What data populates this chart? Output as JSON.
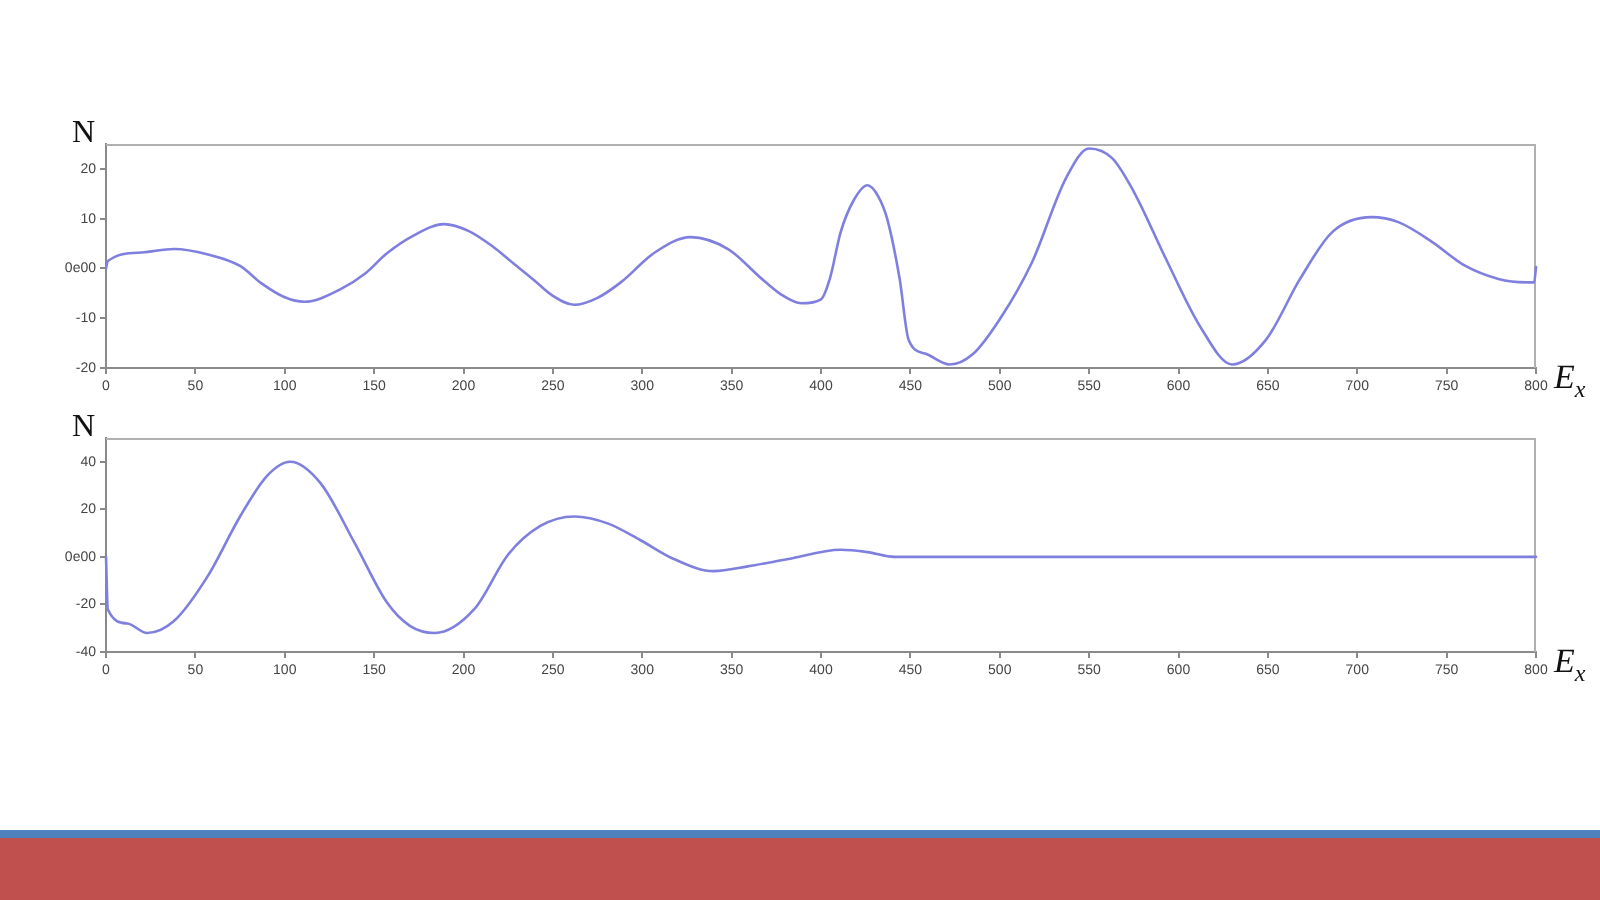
{
  "chart_data": [
    {
      "type": "line",
      "xlabel": "E$_{x}$",
      "ylabel": "N",
      "color": "#7f7fdf",
      "marker": "none",
      "x": [
        0,
        1,
        20,
        38,
        57,
        75,
        87,
        100,
        111,
        131,
        145,
        157,
        172,
        189,
        203,
        216,
        228,
        239,
        250,
        262,
        275,
        288,
        307,
        327,
        348,
        366,
        378,
        389,
        400,
        405,
        411,
        418,
        426,
        432,
        437,
        444,
        449,
        459,
        472,
        485,
        500,
        518,
        537,
        550,
        563,
        575,
        593,
        612,
        630,
        649,
        668,
        686,
        708,
        723,
        742,
        760,
        779,
        796,
        799,
        800
      ],
      "values": [
        0,
        1.5,
        3.2,
        3.9,
        2.8,
        0.5,
        -3.0,
        -5.8,
        -6.7,
        -4.2,
        -1.0,
        3.0,
        6.6,
        8.9,
        7.5,
        4.5,
        1.0,
        -2.2,
        -5.5,
        -7.3,
        -5.9,
        -2.8,
        3.2,
        6.3,
        3.9,
        -1.8,
        -5.3,
        -7.0,
        -6.2,
        -2.0,
        7.3,
        13.5,
        16.7,
        14.5,
        10.0,
        -2.1,
        -14.3,
        -17.2,
        -19.3,
        -17.2,
        -10.2,
        1.2,
        18.1,
        24.1,
        22.1,
        15.4,
        1.9,
        -11.6,
        -19.3,
        -14.3,
        -2.1,
        7.3,
        10.3,
        9.3,
        5.3,
        0.6,
        -2.1,
        -2.8,
        -2.8,
        0.3
      ],
      "xlim": [
        0,
        800
      ],
      "xticks": [
        0,
        50,
        100,
        150,
        200,
        250,
        300,
        350,
        400,
        450,
        500,
        550,
        600,
        650,
        700,
        750,
        800
      ],
      "ylim": [
        -20,
        25
      ],
      "yticks": [
        -20,
        -10,
        {
          "value": 0,
          "label": "0e00"
        },
        10,
        20
      ]
    },
    {
      "type": "line",
      "xlabel": "E$_{x}$",
      "ylabel": "N",
      "color": "#7f7fdf",
      "marker": "none",
      "x": [
        0,
        1,
        12,
        23,
        38,
        57,
        75,
        90,
        103,
        120,
        139,
        157,
        170,
        184,
        206,
        225,
        243,
        262,
        281,
        299,
        318,
        340,
        359,
        381,
        411,
        426,
        441,
        500,
        600,
        700,
        800
      ],
      "values": [
        0,
        -22,
        -28,
        -32,
        -27,
        -8,
        17,
        34,
        40,
        31,
        6,
        -19,
        -29,
        -32,
        -22,
        1,
        13,
        17,
        14,
        7,
        -1,
        -6,
        -4,
        -1,
        3,
        2,
        0,
        0,
        0,
        0,
        0
      ],
      "xlim": [
        0,
        800
      ],
      "xticks": [
        0,
        50,
        100,
        150,
        200,
        250,
        300,
        350,
        400,
        450,
        500,
        550,
        600,
        650,
        700,
        750,
        800
      ],
      "ylim": [
        -40,
        50
      ],
      "yticks": [
        -40,
        -20,
        {
          "value": 0,
          "label": "0e00"
        },
        20,
        40
      ]
    }
  ]
}
